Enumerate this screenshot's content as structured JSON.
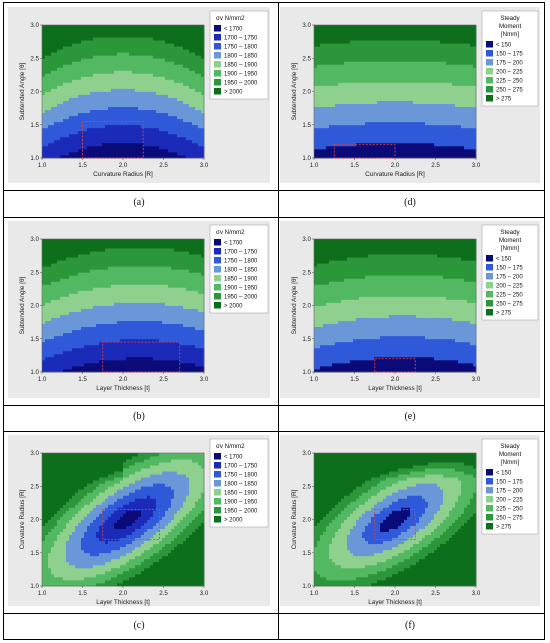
{
  "colors": {
    "c0": "#0a0a78",
    "c1": "#1b2ab8",
    "c2": "#2f59d8",
    "c3": "#6a97d8",
    "c4": "#8fd08f",
    "c5": "#52b862",
    "c6": "#2c963a",
    "c7": "#0d6e1c",
    "roi": "#e04040",
    "panel": "#e9e9e9"
  },
  "chart_data": [
    {
      "id": "a",
      "type": "heatmap",
      "caption": "(a)",
      "xlabel": "Curvature Radius [R]",
      "ylabel": "Subtended Angle [θ]",
      "xlim": [
        1.0,
        3.0
      ],
      "ylim": [
        1.0,
        3.0
      ],
      "xticks": [
        "1.0",
        "1.5",
        "2.0",
        "2.5",
        "3.0"
      ],
      "yticks": [
        "1.0",
        "1.5",
        "2.0",
        "2.5",
        "3.0"
      ],
      "legend_title": [
        "σv N/mm2"
      ],
      "legend": [
        "< 1700",
        "1700 – 1750",
        "1750 – 1800",
        "1800 – 1850",
        "1850 – 1900",
        "1900 – 1950",
        "1950 – 2000",
        "> 2000"
      ],
      "roi": {
        "x": [
          1.5,
          2.25
        ],
        "y": [
          1.0,
          1.55
        ]
      }
    },
    {
      "id": "d",
      "type": "heatmap",
      "caption": "(d)",
      "xlabel": "Curvature Radius [R]",
      "ylabel": "Subtended Angle [θ]",
      "xlim": [
        1.0,
        3.0
      ],
      "ylim": [
        1.0,
        3.0
      ],
      "xticks": [
        "1.0",
        "1.5",
        "2.0",
        "2.5",
        "3.0"
      ],
      "yticks": [
        "1.0",
        "1.5",
        "2.0",
        "2.5",
        "3.0"
      ],
      "legend_title": [
        "Steady",
        "Moment",
        "[Nmm]"
      ],
      "legend": [
        "< 150",
        "150 – 175",
        "175 – 200",
        "200 – 225",
        "225 – 250",
        "250 – 275",
        "> 275"
      ],
      "roi": {
        "x": [
          1.25,
          2.0
        ],
        "y": [
          1.0,
          1.2
        ]
      }
    },
    {
      "id": "b",
      "type": "heatmap",
      "caption": "(b)",
      "xlabel": "Layer Thickness [t]",
      "ylabel": "Subtended Angle [θ]",
      "xlim": [
        1.0,
        3.0
      ],
      "ylim": [
        1.0,
        3.0
      ],
      "xticks": [
        "1.0",
        "1.5",
        "2.0",
        "2.5",
        "3.0"
      ],
      "yticks": [
        "1.0",
        "1.5",
        "2.0",
        "2.5",
        "3.0"
      ],
      "legend_title": [
        "σv N/mm2"
      ],
      "legend": [
        "< 1700",
        "1700 – 1750",
        "1750 – 1800",
        "1800 – 1850",
        "1850 – 1900",
        "1900 – 1950",
        "1950 – 2000",
        "> 2000"
      ],
      "roi": {
        "x": [
          1.75,
          2.7
        ],
        "y": [
          1.0,
          1.45
        ]
      }
    },
    {
      "id": "e",
      "type": "heatmap",
      "caption": "(e)",
      "xlabel": "Layer Thickness [t]",
      "ylabel": "Subtended Angle [θ]",
      "xlim": [
        1.0,
        3.0
      ],
      "ylim": [
        1.0,
        3.0
      ],
      "xticks": [
        "1.0",
        "1.5",
        "2.0",
        "2.5",
        "3.0"
      ],
      "yticks": [
        "1.0",
        "1.5",
        "2.0",
        "2.5",
        "3.0"
      ],
      "legend_title": [
        "Steady",
        "Moment",
        "[Nmm]"
      ],
      "legend": [
        "< 150",
        "150 – 175",
        "175 – 200",
        "200 – 225",
        "225 – 250",
        "250 – 275",
        "> 275"
      ],
      "roi": {
        "x": [
          1.75,
          2.25
        ],
        "y": [
          1.0,
          1.2
        ]
      }
    },
    {
      "id": "c",
      "type": "heatmap",
      "caption": "(c)",
      "xlabel": "Layer Thickness [t]",
      "ylabel": "Curvature Radius [R]",
      "xlim": [
        1.0,
        3.0
      ],
      "ylim": [
        1.0,
        3.0
      ],
      "xticks": [
        "1.0",
        "1.5",
        "2.0",
        "2.5",
        "3.0"
      ],
      "yticks": [
        "1.0",
        "1.5",
        "2.0",
        "2.5",
        "3.0"
      ],
      "legend_title": [
        "σv N/mm2"
      ],
      "legend": [
        "< 1700",
        "1700 – 1750",
        "1750 – 1800",
        "1800 – 1850",
        "1850 – 1900",
        "1900 – 1950",
        "1950 – 2000",
        "> 2000"
      ],
      "roi": {
        "x": [
          1.75,
          2.45
        ],
        "y": [
          1.7,
          2.15
        ]
      }
    },
    {
      "id": "f",
      "type": "heatmap",
      "caption": "(f)",
      "xlabel": "Layer Thickness [t]",
      "ylabel": "Curvature Radius [R]",
      "xlim": [
        1.0,
        3.0
      ],
      "ylim": [
        1.0,
        3.0
      ],
      "xticks": [
        "1.0",
        "1.5",
        "2.0",
        "2.5",
        "3.0"
      ],
      "yticks": [
        "1.0",
        "1.5",
        "2.0",
        "2.5",
        "3.0"
      ],
      "legend_title": [
        "Steady",
        "Moment",
        "[Nmm]"
      ],
      "legend": [
        "< 150",
        "150 – 175",
        "175 – 200",
        "200 – 225",
        "225 – 250",
        "250 – 275",
        "> 275"
      ],
      "roi": {
        "x": [
          1.75,
          2.25
        ],
        "y": [
          1.7,
          2.15
        ]
      }
    }
  ]
}
